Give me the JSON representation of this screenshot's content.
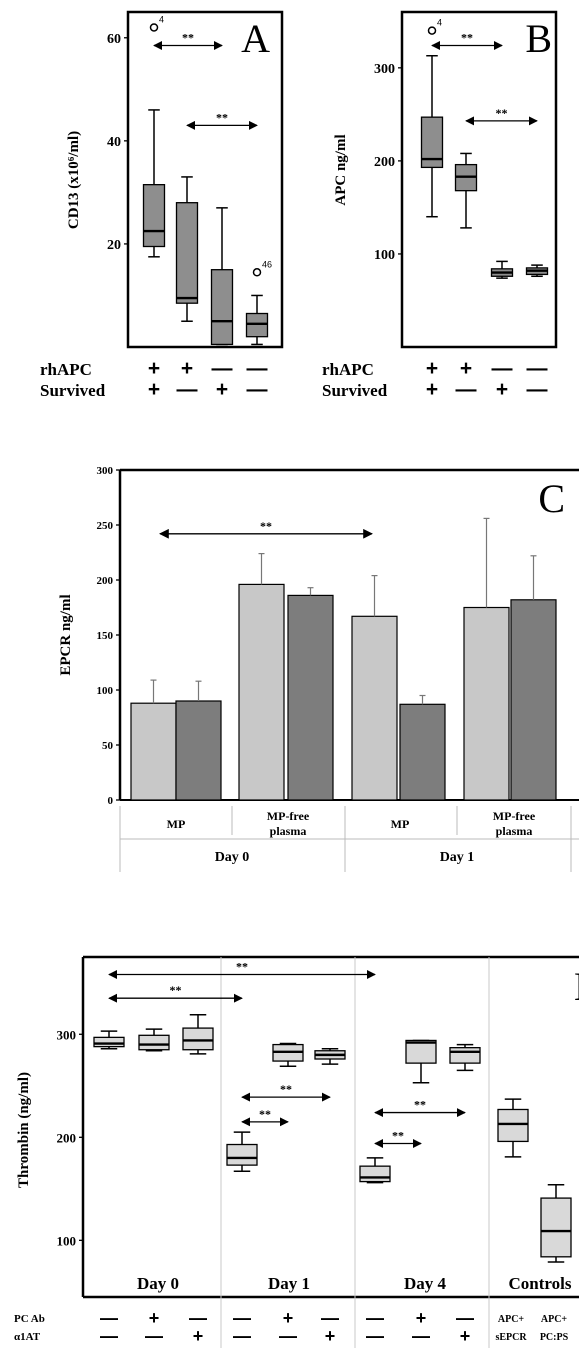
{
  "chart_data": [
    {
      "id": "A",
      "type": "box",
      "panel_label": "A",
      "ylabel": "CD13 (x10⁶/ml)",
      "ylim": [
        0,
        65
      ],
      "yticks": [
        "20",
        "40",
        "60"
      ],
      "row_labels": [
        "rhAPC",
        "Survived"
      ],
      "rows": [
        [
          "+",
          "+",
          "—",
          "—"
        ],
        [
          "+",
          "—",
          "+",
          "—"
        ]
      ],
      "boxes": [
        {
          "min": 17.5,
          "q1": 19.5,
          "median": 22.5,
          "q3": 31.5,
          "max": 46
        },
        {
          "min": 5,
          "q1": 8.5,
          "median": 9.5,
          "q3": 28,
          "max": 33
        },
        {
          "min": 0.5,
          "q1": 0.5,
          "median": 5,
          "q3": 15,
          "max": 27
        },
        {
          "min": 0.5,
          "q1": 2,
          "median": 4.5,
          "q3": 6.5,
          "max": 10
        }
      ],
      "outliers": [
        {
          "box": 0,
          "value": 62,
          "label": "4"
        },
        {
          "box": 3,
          "value": 14.5,
          "label": "46"
        }
      ],
      "brackets": [
        {
          "from": 0,
          "to": 2,
          "value": 58.5,
          "label": "**"
        },
        {
          "from": 1,
          "to": 3,
          "value": 43,
          "label": "**"
        }
      ]
    },
    {
      "id": "B",
      "type": "box",
      "panel_label": "B",
      "ylabel": "APC ng/ml",
      "ylim": [
        0,
        360
      ],
      "yticks": [
        "100",
        "200",
        "300"
      ],
      "row_labels": [
        "rhAPC",
        "Survived"
      ],
      "rows": [
        [
          "+",
          "+",
          "—",
          "—"
        ],
        [
          "+",
          "—",
          "+",
          "—"
        ]
      ],
      "boxes": [
        {
          "min": 140,
          "q1": 193,
          "median": 202,
          "q3": 247,
          "max": 313
        },
        {
          "min": 128,
          "q1": 168,
          "median": 183,
          "q3": 196,
          "max": 208
        },
        {
          "min": 74,
          "q1": 76,
          "median": 80,
          "q3": 84,
          "max": 92
        },
        {
          "min": 76,
          "q1": 78,
          "median": 82,
          "q3": 85,
          "max": 88
        }
      ],
      "outliers": [
        {
          "box": 0,
          "value": 340,
          "label": "4"
        }
      ],
      "brackets": [
        {
          "from": 0,
          "to": 2,
          "value": 324,
          "label": "**"
        },
        {
          "from": 1,
          "to": 3,
          "value": 243,
          "label": "**"
        }
      ]
    },
    {
      "id": "C",
      "type": "bar",
      "panel_label": "C",
      "ylabel": "EPCR ng/ml",
      "ylim": [
        0,
        300
      ],
      "yticks": [
        "0",
        "50",
        "100",
        "150",
        "200",
        "250",
        "300"
      ],
      "categories": [
        "MP",
        "MP-free plasma",
        "MP",
        "MP-free plasma"
      ],
      "groups": [
        "Day 0",
        "Day 1"
      ],
      "series": [
        {
          "values": [
            88,
            196,
            167,
            175
          ],
          "errors": [
            21,
            28,
            37,
            81
          ],
          "color": "#c8c8c8"
        },
        {
          "values": [
            90,
            186,
            87,
            182
          ],
          "errors": [
            18,
            7,
            8,
            40
          ],
          "color": "#7d7d7d"
        }
      ],
      "brackets": [
        {
          "from": 0,
          "to": 2,
          "label": "**",
          "value": 242
        }
      ]
    },
    {
      "id": "D",
      "type": "box",
      "panel_label": "D",
      "ylabel": "Thrombin (ng/ml)",
      "ylim": [
        45,
        375
      ],
      "yticks": [
        "100",
        "200",
        "300"
      ],
      "groups": [
        "Day 0",
        "Day 1",
        "Day 4",
        "Controls"
      ],
      "row_labels": [
        "PC Ab",
        "α1AT"
      ],
      "rows": [
        [
          "—",
          "+",
          "—",
          "—",
          "+",
          "—",
          "—",
          "+",
          "—"
        ],
        [
          "—",
          "—",
          "+",
          "—",
          "—",
          "+",
          "—",
          "—",
          "+"
        ]
      ],
      "control_labels": [
        [
          "APC+",
          "sEPCR"
        ],
        [
          "APC+",
          "PC:PS"
        ]
      ],
      "boxes": [
        {
          "min": 286,
          "q1": 288,
          "median": 291,
          "q3": 297,
          "max": 303
        },
        {
          "min": 284,
          "q1": 285,
          "median": 290,
          "q3": 299,
          "max": 305
        },
        {
          "min": 281,
          "q1": 285,
          "median": 294,
          "q3": 306,
          "max": 319
        },
        {
          "min": 167,
          "q1": 173,
          "median": 180,
          "q3": 193,
          "max": 205
        },
        {
          "min": 269,
          "q1": 274,
          "median": 283,
          "q3": 290,
          "max": 291
        },
        {
          "min": 271,
          "q1": 276,
          "median": 280,
          "q3": 284,
          "max": 286
        },
        {
          "min": 156,
          "q1": 157,
          "median": 161,
          "q3": 172,
          "max": 180
        },
        {
          "min": 253,
          "q1": 272,
          "median": 292,
          "q3": 294,
          "max": 294
        },
        {
          "min": 265,
          "q1": 272,
          "median": 283,
          "q3": 287,
          "max": 290
        },
        {
          "min": 181,
          "q1": 196,
          "median": 213,
          "q3": 227,
          "max": 237
        },
        {
          "min": 79,
          "q1": 84,
          "median": 109,
          "q3": 141,
          "max": 154
        }
      ],
      "brackets": [
        {
          "from": 0,
          "to": 6,
          "value": 358,
          "label": "**"
        },
        {
          "from": 0,
          "to": 3,
          "value": 335,
          "label": "**"
        },
        {
          "from": 3,
          "to": 5,
          "value": 239,
          "label": "**"
        },
        {
          "from": 3,
          "to": 4,
          "value": 215,
          "label": "**"
        },
        {
          "from": 6,
          "to": 8,
          "value": 224,
          "label": "**"
        },
        {
          "from": 6,
          "to": 7,
          "value": 194,
          "label": "**"
        }
      ]
    }
  ]
}
